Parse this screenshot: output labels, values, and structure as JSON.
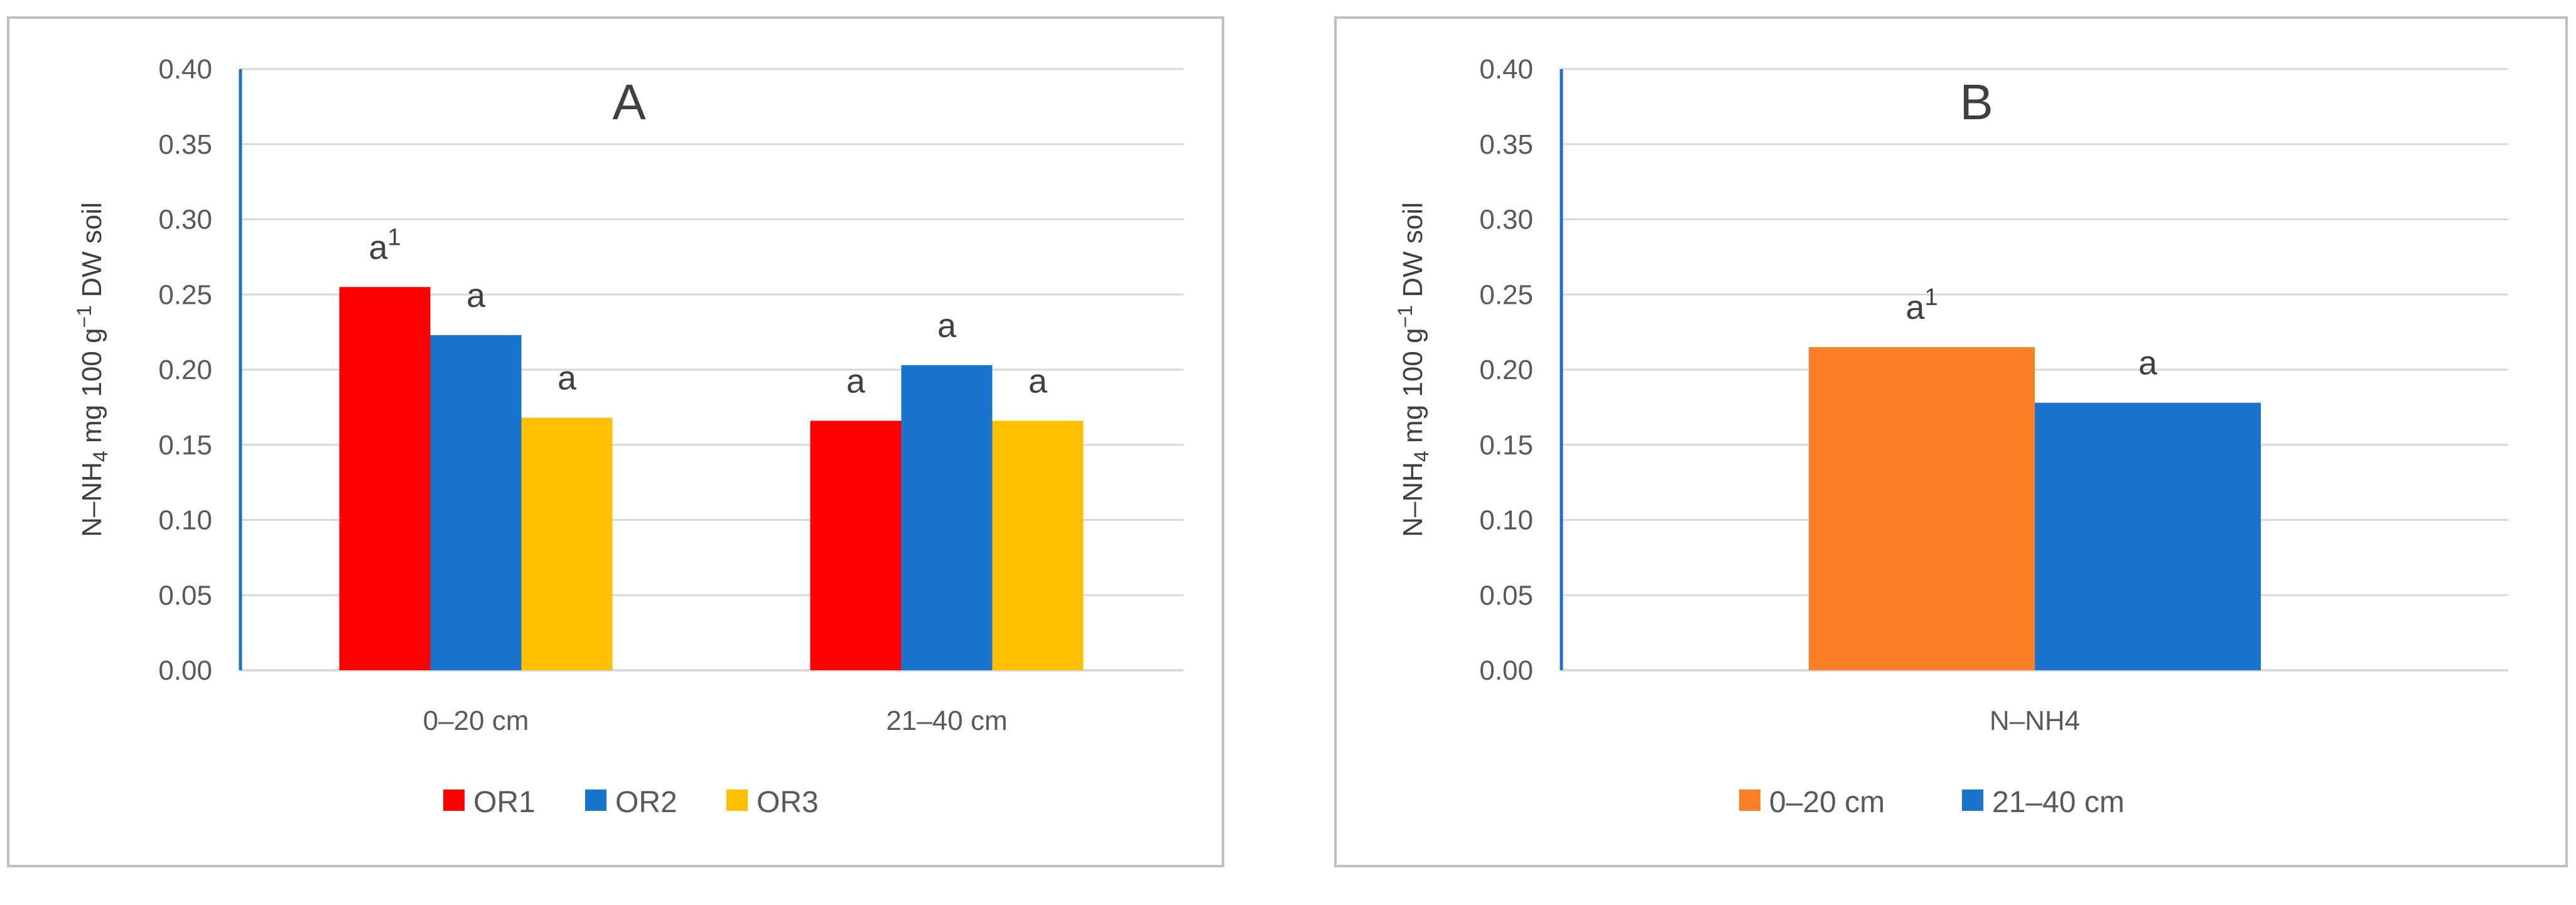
{
  "chart_data": [
    {
      "type": "bar",
      "panel_label": "A",
      "categories": [
        "0–20 cm",
        "21–40 cm"
      ],
      "series": [
        {
          "name": "OR1",
          "values": [
            0.255,
            0.166
          ],
          "color": "#FF0000",
          "labels": [
            "a",
            "a"
          ]
        },
        {
          "name": "OR2",
          "values": [
            0.223,
            0.203
          ],
          "color": "#1874CD",
          "labels": [
            "a",
            "a"
          ]
        },
        {
          "name": "OR3",
          "values": [
            0.168,
            0.166
          ],
          "color": "#FFC000",
          "labels": [
            "a",
            "a"
          ]
        }
      ],
      "first_label_superscript": "1",
      "ylabel": {
        "prefix": "N–NH",
        "sub": "4",
        "middle": " mg 100 g",
        "sup": "−1",
        "suffix": " DW soil"
      },
      "ylim": [
        0,
        0.4
      ],
      "yticks": [
        "0.00",
        "0.05",
        "0.10",
        "0.15",
        "0.20",
        "0.25",
        "0.30",
        "0.35",
        "0.40"
      ],
      "grid": true,
      "legend": "bottom"
    },
    {
      "type": "bar",
      "panel_label": "B",
      "categories": [
        "N–NH4"
      ],
      "series": [
        {
          "name": "0–20 cm",
          "values": [
            0.215
          ],
          "color": "#FF7F27",
          "labels": [
            "a"
          ]
        },
        {
          "name": "21–40 cm",
          "values": [
            0.178
          ],
          "color": "#1874CD",
          "labels": [
            "a"
          ]
        }
      ],
      "first_label_superscript": "1",
      "ylabel": {
        "prefix": "N–NH",
        "sub": "4",
        "middle": " mg 100 g",
        "sup": "−1",
        "suffix": " DW soil"
      },
      "ylim": [
        0,
        0.4
      ],
      "yticks": [
        "0.00",
        "0.05",
        "0.10",
        "0.15",
        "0.20",
        "0.25",
        "0.30",
        "0.35",
        "0.40"
      ],
      "grid": true,
      "legend": "bottom"
    }
  ]
}
